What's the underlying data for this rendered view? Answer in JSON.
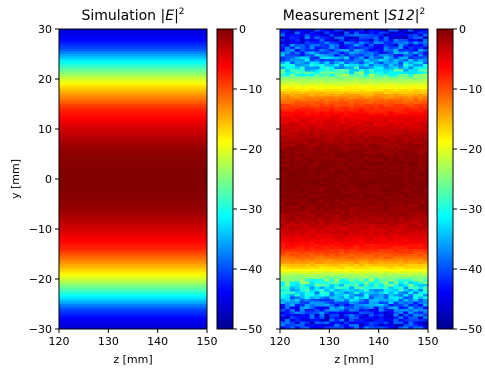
{
  "chart_data": [
    {
      "type": "heatmap",
      "title": "Simulation |E|²",
      "title_parts": {
        "prefix": "Simulation ",
        "var": "E",
        "sup": "2"
      },
      "xlabel": "z [mm]",
      "ylabel": "y [mm]",
      "xlim": [
        120,
        150
      ],
      "ylim": [
        -30,
        30
      ],
      "xticks": [
        120,
        130,
        140,
        150
      ],
      "yticks": [
        -30,
        -20,
        -10,
        0,
        10,
        20,
        30
      ],
      "colorbar": {
        "range": [
          -50,
          0
        ],
        "ticks": [
          0,
          -10,
          -20,
          -30,
          -40,
          -50
        ],
        "colormap": "jet"
      },
      "profile": {
        "y": [
          -30,
          -28,
          -26,
          -24,
          -22,
          -20,
          -18,
          -16,
          -14,
          -12,
          -10,
          -8,
          -6,
          -4,
          -2,
          0,
          2,
          4,
          6,
          8,
          10,
          12,
          14,
          16,
          18,
          20,
          22,
          24,
          26,
          28,
          30
        ],
        "values_db": [
          -46,
          -44,
          -40,
          -33,
          -27,
          -21,
          -16,
          -12,
          -8,
          -6,
          -4,
          -2.5,
          -1,
          -0.5,
          -0.2,
          0,
          -0.2,
          -0.5,
          -1,
          -2.5,
          -4,
          -6,
          -8,
          -12,
          -16,
          -21,
          -27,
          -33,
          -40,
          -44,
          -46
        ]
      },
      "noise": false
    },
    {
      "type": "heatmap",
      "title": "Measurement |S12|²",
      "title_parts": {
        "prefix": "Measurement ",
        "var": "S12",
        "sup": "2"
      },
      "xlabel": "z [mm]",
      "ylabel": "",
      "xlim": [
        120,
        150
      ],
      "ylim": [
        -30,
        30
      ],
      "xticks": [
        120,
        130,
        140,
        150
      ],
      "yticks": [
        -30,
        -20,
        -10,
        0,
        10,
        20,
        30
      ],
      "colorbar": {
        "range": [
          -50,
          0
        ],
        "ticks": [
          0,
          -10,
          -20,
          -30,
          -40,
          -50
        ],
        "colormap": "jet"
      },
      "profile": {
        "y": [
          -30,
          -28,
          -26,
          -24,
          -22,
          -20,
          -18,
          -16,
          -14,
          -12,
          -10,
          -8,
          -6,
          -4,
          -2,
          0,
          2,
          4,
          6,
          8,
          10,
          12,
          14,
          16,
          18,
          20,
          22,
          24,
          26,
          28,
          30
        ],
        "values_db": [
          -42,
          -43,
          -40,
          -36,
          -32,
          -26,
          -18,
          -12,
          -8,
          -5,
          -3.5,
          -2,
          -1,
          -0.5,
          -0.2,
          0,
          -0.2,
          -0.5,
          -1,
          -2,
          -3.5,
          -5,
          -8,
          -12,
          -18,
          -24,
          -32,
          -37,
          -40,
          -42,
          -44
        ]
      },
      "noise": true
    }
  ]
}
